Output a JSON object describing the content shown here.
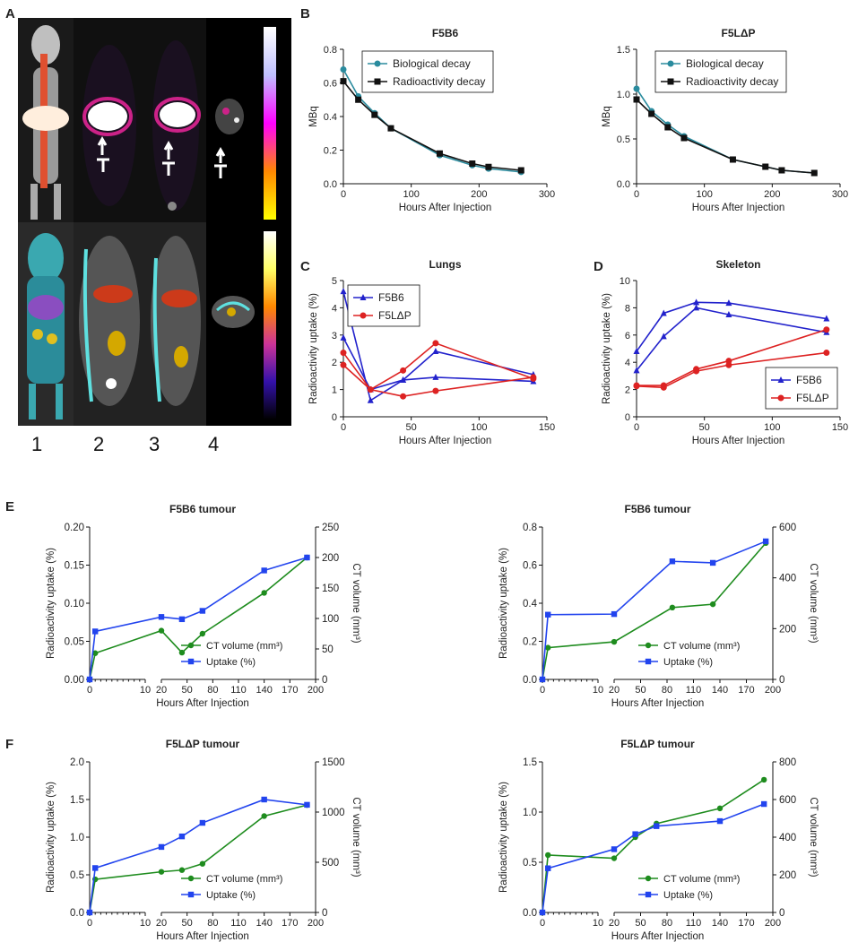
{
  "panel_labels": {
    "A": "A",
    "B": "B",
    "C": "C",
    "D": "D",
    "E": "E",
    "F": "F"
  },
  "image_panel": {
    "scan_numbers": [
      "1",
      "2",
      "3",
      "4"
    ],
    "colorbar_top": [
      "#ffffff",
      "#c0c0ff",
      "#ff00ff",
      "#ff8800",
      "#ffff00"
    ],
    "colorbar_bottom": [
      "#ffffff",
      "#ffff66",
      "#ff8800",
      "#cc3399",
      "#3311aa",
      "#000000"
    ]
  },
  "colors": {
    "teal": "#2a8b9e",
    "black": "#111111",
    "blue": "#2222cc",
    "red": "#dd2222",
    "green": "#1e8c1e",
    "eblue": "#2244ee"
  },
  "chart_data": [
    {
      "id": "b1",
      "type": "line",
      "title": "F5B6",
      "xlabel": "Hours After Injection",
      "ylabel": "MBq",
      "xlim": [
        0,
        300
      ],
      "ylim": [
        0,
        0.8
      ],
      "xticks": [
        "0",
        "100",
        "200",
        "300"
      ],
      "yticks": [
        "0.0",
        "0.2",
        "0.4",
        "0.6",
        "0.8"
      ],
      "legend_position": "top-right",
      "series": [
        {
          "name": "Biological decay",
          "marker": "circle",
          "color": "#2a8b9e",
          "x": [
            0,
            22,
            46,
            70,
            142,
            190,
            214,
            262
          ],
          "y": [
            0.68,
            0.52,
            0.42,
            0.33,
            0.17,
            0.11,
            0.09,
            0.07
          ]
        },
        {
          "name": "Radioactivity decay",
          "marker": "square",
          "color": "#111111",
          "x": [
            0,
            22,
            46,
            70,
            142,
            190,
            214,
            262
          ],
          "y": [
            0.61,
            0.5,
            0.41,
            0.33,
            0.18,
            0.12,
            0.1,
            0.08
          ]
        }
      ]
    },
    {
      "id": "b2",
      "type": "line",
      "title": "F5LΔP",
      "xlabel": "Hours After Injection",
      "ylabel": "MBq",
      "xlim": [
        0,
        300
      ],
      "ylim": [
        0,
        1.5
      ],
      "xticks": [
        "0",
        "100",
        "200",
        "300"
      ],
      "yticks": [
        "0.0",
        "0.5",
        "1.0",
        "1.5"
      ],
      "legend_position": "top-right",
      "series": [
        {
          "name": "Biological decay",
          "marker": "circle",
          "color": "#2a8b9e",
          "x": [
            0,
            22,
            46,
            70,
            142,
            190,
            214,
            262
          ],
          "y": [
            1.06,
            0.81,
            0.66,
            0.53,
            0.27,
            0.19,
            0.15,
            0.12
          ]
        },
        {
          "name": "Radioactivity decay",
          "marker": "square",
          "color": "#111111",
          "x": [
            0,
            22,
            46,
            70,
            142,
            190,
            214,
            262
          ],
          "y": [
            0.94,
            0.78,
            0.63,
            0.51,
            0.27,
            0.19,
            0.15,
            0.12
          ]
        }
      ]
    },
    {
      "id": "c",
      "type": "line",
      "title": "Lungs",
      "xlabel": "Hours After Injection",
      "ylabel": "Radioactivity uptake (%)",
      "xlim": [
        0,
        150
      ],
      "ylim": [
        0,
        5
      ],
      "xticks": [
        "0",
        "50",
        "100",
        "150"
      ],
      "yticks": [
        "0",
        "1",
        "2",
        "3",
        "4",
        "5"
      ],
      "legend_position": "top-left",
      "series": [
        {
          "name": "F5B6",
          "marker": "triangle",
          "color": "#2222cc",
          "x": [
            0,
            20,
            44,
            68,
            140
          ],
          "y": [
            4.6,
            0.6,
            1.35,
            2.4,
            1.55
          ]
        },
        {
          "name": "",
          "marker": "triangle",
          "color": "#2222cc",
          "x": [
            0,
            20,
            44,
            68,
            140
          ],
          "y": [
            2.9,
            1.0,
            1.35,
            1.45,
            1.3
          ]
        },
        {
          "name": "F5LΔP",
          "marker": "circle",
          "color": "#dd2222",
          "x": [
            0,
            20,
            44,
            68,
            140
          ],
          "y": [
            2.35,
            1.0,
            1.7,
            2.7,
            1.4
          ]
        },
        {
          "name": "",
          "marker": "circle",
          "color": "#dd2222",
          "x": [
            0,
            20,
            44,
            68,
            140
          ],
          "y": [
            1.9,
            1.0,
            0.75,
            0.95,
            1.45
          ]
        }
      ]
    },
    {
      "id": "d",
      "type": "line",
      "title": "Skeleton",
      "xlabel": "Hours After Injection",
      "ylabel": "Radioactivity uptake (%)",
      "xlim": [
        0,
        150
      ],
      "ylim": [
        0,
        10
      ],
      "xticks": [
        "0",
        "50",
        "100",
        "150"
      ],
      "yticks": [
        "0",
        "2",
        "4",
        "6",
        "8",
        "10"
      ],
      "legend_position": "bottom-right",
      "series": [
        {
          "name": "F5B6",
          "marker": "triangle",
          "color": "#2222cc",
          "x": [
            0,
            20,
            44,
            68,
            140
          ],
          "y": [
            4.8,
            7.6,
            8.4,
            8.35,
            7.2
          ]
        },
        {
          "name": "",
          "marker": "triangle",
          "color": "#2222cc",
          "x": [
            0,
            20,
            44,
            68,
            140
          ],
          "y": [
            3.4,
            5.9,
            8.0,
            7.5,
            6.2
          ]
        },
        {
          "name": "F5LΔP",
          "marker": "circle",
          "color": "#dd2222",
          "x": [
            0,
            20,
            44,
            68,
            140
          ],
          "y": [
            2.3,
            2.3,
            3.5,
            4.1,
            6.4
          ]
        },
        {
          "name": "",
          "marker": "circle",
          "color": "#dd2222",
          "x": [
            0,
            20,
            44,
            68,
            140
          ],
          "y": [
            2.25,
            2.15,
            3.35,
            3.8,
            4.7
          ]
        }
      ]
    },
    {
      "id": "e1",
      "type": "line",
      "title": "F5B6 tumour",
      "xlabel": "Hours After Injection",
      "ylabel": "Radioactivity uptake (%)",
      "y2label": "CT volume (mm³)",
      "x_segments": [
        {
          "xlim": [
            0,
            10
          ],
          "ticks": [
            "0",
            "10"
          ]
        },
        {
          "xlim": [
            20,
            200
          ],
          "ticks": [
            "20",
            "50",
            "80",
            "110",
            "140",
            "170",
            "200"
          ]
        }
      ],
      "ylim": [
        0,
        0.2
      ],
      "y2lim": [
        0,
        250
      ],
      "yticks": [
        "0.00",
        "0.05",
        "0.10",
        "0.15",
        "0.20"
      ],
      "y2ticks": [
        "0",
        "50",
        "100",
        "150",
        "200",
        "250"
      ],
      "legend_position": "bottom-right",
      "series": [
        {
          "name": "CT volume (mm³)",
          "marker": "circle",
          "color": "#1e8c1e",
          "axis": "y2",
          "x": [
            0,
            1,
            20,
            44,
            68,
            140,
            190
          ],
          "y": [
            0,
            43,
            80,
            44,
            75,
            142,
            200
          ]
        },
        {
          "name": "Uptake (%)",
          "marker": "square",
          "color": "#2244ee",
          "axis": "y",
          "x": [
            0,
            1,
            20,
            44,
            68,
            140,
            190
          ],
          "y": [
            0,
            0.063,
            0.082,
            0.079,
            0.09,
            0.143,
            0.16
          ]
        }
      ]
    },
    {
      "id": "e2",
      "type": "line",
      "title": "F5B6 tumour",
      "xlabel": "Hours After Injection",
      "ylabel": "Radioactivity uptake (%)",
      "y2label": "CT volume (mm³)",
      "x_segments": [
        {
          "xlim": [
            0,
            10
          ],
          "ticks": [
            "0",
            "10"
          ]
        },
        {
          "xlim": [
            20,
            200
          ],
          "ticks": [
            "20",
            "50",
            "80",
            "110",
            "140",
            "170",
            "200"
          ]
        }
      ],
      "ylim": [
        0,
        0.8
      ],
      "y2lim": [
        0,
        600
      ],
      "yticks": [
        "0.0",
        "0.2",
        "0.4",
        "0.6",
        "0.8"
      ],
      "y2ticks": [
        "0",
        "200",
        "400",
        "600"
      ],
      "legend_position": "bottom-right",
      "series": [
        {
          "name": "CT volume (mm³)",
          "marker": "circle",
          "color": "#1e8c1e",
          "axis": "y2",
          "x": [
            0,
            1,
            20,
            86,
            132,
            192
          ],
          "y": [
            0,
            125,
            148,
            283,
            296,
            537
          ]
        },
        {
          "name": "Uptake (%)",
          "marker": "square",
          "color": "#2244ee",
          "axis": "y",
          "x": [
            0,
            1,
            20,
            86,
            132,
            192
          ],
          "y": [
            0,
            0.34,
            0.343,
            0.62,
            0.612,
            0.725
          ]
        }
      ]
    },
    {
      "id": "f1",
      "type": "line",
      "title": "F5LΔP tumour",
      "xlabel": "Hours After Injection",
      "ylabel": "Radioactivity uptake (%)",
      "y2label": "CT volume (mm³)",
      "x_segments": [
        {
          "xlim": [
            0,
            10
          ],
          "ticks": [
            "0",
            "10"
          ]
        },
        {
          "xlim": [
            20,
            200
          ],
          "ticks": [
            "20",
            "50",
            "80",
            "110",
            "140",
            "170",
            "200"
          ]
        }
      ],
      "ylim": [
        0,
        2.0
      ],
      "y2lim": [
        0,
        1500
      ],
      "yticks": [
        "0.0",
        "0.5",
        "1.0",
        "1.5",
        "2.0"
      ],
      "y2ticks": [
        "0",
        "500",
        "1000",
        "1500"
      ],
      "legend_position": "bottom-right",
      "series": [
        {
          "name": "CT volume (mm³)",
          "marker": "circle",
          "color": "#1e8c1e",
          "axis": "y2",
          "x": [
            0,
            1,
            20,
            44,
            68,
            140,
            190
          ],
          "y": [
            0,
            330,
            405,
            422,
            485,
            960,
            1070
          ]
        },
        {
          "name": "Uptake (%)",
          "marker": "square",
          "color": "#2244ee",
          "axis": "y",
          "x": [
            0,
            1,
            20,
            44,
            68,
            140,
            190
          ],
          "y": [
            0,
            0.59,
            0.87,
            1.01,
            1.19,
            1.5,
            1.43
          ]
        }
      ]
    },
    {
      "id": "f2",
      "type": "line",
      "title": "F5LΔP tumour",
      "xlabel": "Hours After Injection",
      "ylabel": "Radioactivity uptake (%)",
      "y2label": "CT volume (mm³)",
      "x_segments": [
        {
          "xlim": [
            0,
            10
          ],
          "ticks": [
            "0",
            "10"
          ]
        },
        {
          "xlim": [
            20,
            200
          ],
          "ticks": [
            "20",
            "50",
            "80",
            "110",
            "140",
            "170",
            "200"
          ]
        }
      ],
      "ylim": [
        0,
        1.5
      ],
      "y2lim": [
        0,
        800
      ],
      "yticks": [
        "0.0",
        "0.5",
        "1.0",
        "1.5"
      ],
      "y2ticks": [
        "0",
        "200",
        "400",
        "600",
        "800"
      ],
      "legend_position": "bottom-right",
      "series": [
        {
          "name": "CT volume (mm³)",
          "marker": "circle",
          "color": "#1e8c1e",
          "axis": "y2",
          "x": [
            0,
            1,
            20,
            44,
            68,
            140,
            190
          ],
          "y": [
            0,
            305,
            288,
            400,
            472,
            553,
            705
          ]
        },
        {
          "name": "Uptake (%)",
          "marker": "square",
          "color": "#2244ee",
          "axis": "y",
          "x": [
            0,
            1,
            20,
            44,
            68,
            140,
            190
          ],
          "y": [
            0,
            0.44,
            0.63,
            0.78,
            0.86,
            0.91,
            1.08
          ]
        }
      ]
    }
  ]
}
